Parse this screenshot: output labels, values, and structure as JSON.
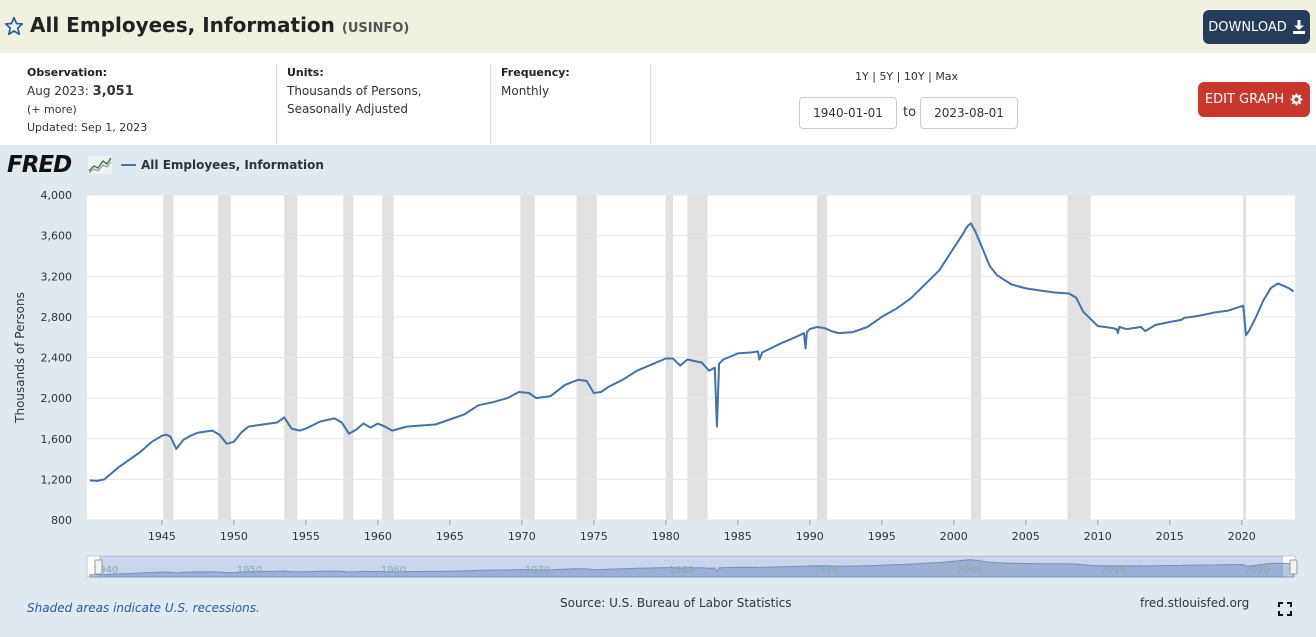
{
  "header": {
    "title": "All Employees, Information",
    "series_id": "(USINFO)",
    "download_label": "DOWNLOAD"
  },
  "meta": {
    "observation_label": "Observation:",
    "observation_date": "Aug 2023:",
    "observation_value": "3,051",
    "more_link": "(+ more)",
    "updated": "Updated: Sep 1, 2023",
    "units_label": "Units:",
    "units_line1": "Thousands of Persons,",
    "units_line2": "Seasonally Adjusted",
    "frequency_label": "Frequency:",
    "frequency_value": "Monthly"
  },
  "controls": {
    "range_1y": "1Y",
    "range_5y": "5Y",
    "range_10y": "10Y",
    "range_max": "Max",
    "sep": "|",
    "start_date": "1940-01-01",
    "to_label": "to",
    "end_date": "2023-08-01",
    "edit_label": "EDIT GRAPH"
  },
  "footer": {
    "recession_note": "Shaded areas indicate U.S. recessions.",
    "source": "Source: U.S. Bureau of Labor Statistics",
    "site": "fred.stlouisfed.org"
  },
  "colors": {
    "line": "#4572a7",
    "recession": "#e1e1e1",
    "edit": "#c9372c",
    "download": "#263c58"
  },
  "chart_data": {
    "type": "line",
    "ylabel": "Thousands of Persons",
    "legend": "All Employees, Information",
    "logo": "FRED",
    "ylim": [
      800,
      4000
    ],
    "xlim": [
      1939.8,
      2023.7
    ],
    "yticks": [
      800,
      1200,
      1600,
      2000,
      2400,
      2800,
      3200,
      3600,
      4000
    ],
    "yticklabels": [
      "800",
      "1,200",
      "1,600",
      "2,000",
      "2,400",
      "2,800",
      "3,200",
      "3,600",
      "4,000"
    ],
    "xticks": [
      1945,
      1950,
      1955,
      1960,
      1965,
      1970,
      1975,
      1980,
      1985,
      1990,
      1995,
      2000,
      2005,
      2010,
      2015,
      2020
    ],
    "xticklabels": [
      "1945",
      "1950",
      "1955",
      "1960",
      "1965",
      "1970",
      "1975",
      "1980",
      "1985",
      "1990",
      "1995",
      "2000",
      "2005",
      "2010",
      "2015",
      "2020"
    ],
    "navigator_labels": [
      "1940",
      "1950",
      "1960",
      "1970",
      "1980",
      "1990",
      "2000",
      "2010",
      "2020"
    ],
    "recessions": [
      [
        1945.1,
        1945.8
      ],
      [
        1948.9,
        1949.8
      ],
      [
        1953.5,
        1954.4
      ],
      [
        1957.6,
        1958.3
      ],
      [
        1960.3,
        1961.1
      ],
      [
        1969.9,
        1970.9
      ],
      [
        1973.8,
        1975.2
      ],
      [
        1980.0,
        1980.5
      ],
      [
        1981.5,
        1982.9
      ],
      [
        1990.5,
        1991.2
      ],
      [
        2001.2,
        2001.9
      ],
      [
        2007.9,
        2009.5
      ],
      [
        2020.1,
        2020.3
      ]
    ],
    "series": [
      {
        "name": "All Employees, Information",
        "x": [
          1940.0,
          1940.5,
          1941.0,
          1941.5,
          1942.0,
          1942.8,
          1943.5,
          1944.3,
          1945.0,
          1945.3,
          1945.6,
          1946.0,
          1946.5,
          1947.0,
          1947.5,
          1948.0,
          1948.5,
          1949.0,
          1949.5,
          1950.0,
          1950.5,
          1951.0,
          1952.0,
          1953.0,
          1953.5,
          1954.0,
          1954.6,
          1955.0,
          1956.0,
          1957.0,
          1957.5,
          1958.0,
          1958.5,
          1959.0,
          1959.5,
          1960.0,
          1960.5,
          1961.0,
          1962.0,
          1963.0,
          1964.0,
          1965.0,
          1966.0,
          1967.0,
          1968.0,
          1969.0,
          1969.8,
          1970.5,
          1971.0,
          1972.0,
          1973.0,
          1973.9,
          1974.5,
          1975.0,
          1975.5,
          1976.0,
          1977.0,
          1978.0,
          1979.0,
          1980.0,
          1980.5,
          1981.0,
          1981.5,
          1982.5,
          1983.0,
          1983.4,
          1983.55,
          1983.7,
          1984.0,
          1985.0,
          1986.0,
          1986.4,
          1986.5,
          1986.7,
          1987.0,
          1988.0,
          1989.0,
          1989.6,
          1989.7,
          1989.8,
          1990.0,
          1990.5,
          1991.0,
          1991.5,
          1992.0,
          1993.0,
          1994.0,
          1995.0,
          1996.0,
          1997.0,
          1998.0,
          1999.0,
          2000.0,
          2000.7,
          2000.8,
          2001.0,
          2001.2,
          2001.5,
          2002.0,
          2002.5,
          2003.0,
          2004.0,
          2005.0,
          2006.0,
          2007.0,
          2008.0,
          2008.5,
          2009.0,
          2009.5,
          2010.0,
          2011.0,
          2011.3,
          2011.4,
          2011.5,
          2012.0,
          2013.0,
          2013.3,
          2014.0,
          2015.0,
          2015.8,
          2016.0,
          2017.0,
          2018.0,
          2019.0,
          2019.9,
          2020.1,
          2020.3,
          2020.5,
          2021.0,
          2021.5,
          2022.0,
          2022.5,
          2023.0,
          2023.3,
          2023.6
        ],
        "values": [
          1190,
          1185,
          1200,
          1260,
          1320,
          1400,
          1470,
          1570,
          1630,
          1640,
          1620,
          1500,
          1590,
          1630,
          1660,
          1670,
          1680,
          1640,
          1550,
          1570,
          1660,
          1720,
          1740,
          1760,
          1810,
          1700,
          1680,
          1700,
          1770,
          1800,
          1760,
          1650,
          1690,
          1750,
          1710,
          1750,
          1720,
          1680,
          1720,
          1730,
          1740,
          1790,
          1840,
          1930,
          1960,
          2000,
          2060,
          2050,
          2000,
          2020,
          2130,
          2180,
          2170,
          2050,
          2060,
          2110,
          2180,
          2270,
          2330,
          2390,
          2390,
          2320,
          2380,
          2350,
          2270,
          2300,
          1720,
          2340,
          2380,
          2440,
          2450,
          2460,
          2380,
          2450,
          2470,
          2540,
          2600,
          2640,
          2490,
          2650,
          2680,
          2700,
          2690,
          2660,
          2640,
          2650,
          2700,
          2800,
          2880,
          2980,
          3120,
          3260,
          3480,
          3630,
          3660,
          3700,
          3720,
          3640,
          3470,
          3300,
          3210,
          3120,
          3080,
          3060,
          3040,
          3030,
          2990,
          2850,
          2780,
          2710,
          2690,
          2680,
          2640,
          2700,
          2680,
          2700,
          2660,
          2720,
          2750,
          2770,
          2790,
          2810,
          2840,
          2860,
          2900,
          2910,
          2620,
          2660,
          2800,
          2960,
          3080,
          3130,
          3100,
          3080,
          3050
        ]
      }
    ]
  }
}
